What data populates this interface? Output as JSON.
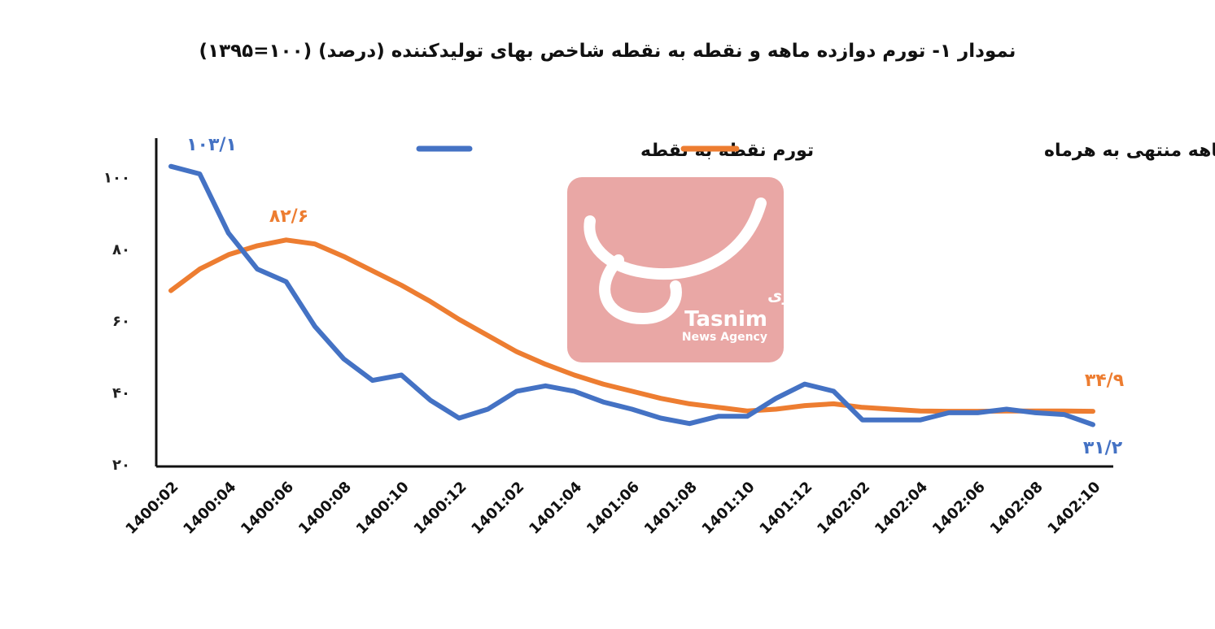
{
  "chart_data": {
    "type": "line",
    "title": "نمودار ۱- تورم دوازده ماهه و نقطه به نقطه شاخص بهای تولیدکننده (درصد) (۱۰۰=۱۳۹۵)",
    "xlabel": "",
    "ylabel": "",
    "ylim": [
      20,
      110
    ],
    "y_ticks": [
      20,
      40,
      60,
      80,
      100
    ],
    "y_tick_labels": [
      "۲۰",
      "۴۰",
      "۶۰",
      "۸۰",
      "۱۰۰"
    ],
    "x_tick_labels": [
      "1400:02",
      "1400:04",
      "1400:06",
      "1400:08",
      "1400:10",
      "1400:12",
      "1401:02",
      "1401:04",
      "1401:06",
      "1401:08",
      "1401:10",
      "1401:12",
      "1402:02",
      "1402:04",
      "1402:06",
      "1402:08",
      "1402:10"
    ],
    "x": [
      "1400:02",
      "1400:03",
      "1400:04",
      "1400:05",
      "1400:06",
      "1400:07",
      "1400:08",
      "1400:09",
      "1400:10",
      "1400:11",
      "1400:12",
      "1401:01",
      "1401:02",
      "1401:03",
      "1401:04",
      "1401:05",
      "1401:06",
      "1401:07",
      "1401:08",
      "1401:09",
      "1401:10",
      "1401:11",
      "1401:12",
      "1402:01",
      "1402:02",
      "1402:03",
      "1402:04",
      "1402:05",
      "1402:06",
      "1402:07",
      "1402:08",
      "1402:09",
      "1402:10"
    ],
    "series": [
      {
        "name": "تورم نقطه به نقطه",
        "color": "#4472c4",
        "values": [
          103.1,
          101,
          84.5,
          74.5,
          71,
          58.5,
          49.5,
          43.5,
          45,
          38,
          33,
          35.5,
          40.5,
          42,
          40.5,
          37.5,
          35.5,
          33,
          31.5,
          33.5,
          33.5,
          38.5,
          42.5,
          40.5,
          32.5,
          32.5,
          32.5,
          34.5,
          34.5,
          35.5,
          34.5,
          34,
          31.2
        ]
      },
      {
        "name": "تورم دوازده ماهه منتهی به هرماه",
        "color": "#ed7d31",
        "values": [
          68.5,
          74.5,
          78.5,
          81,
          82.6,
          81.5,
          78,
          74,
          70,
          65.5,
          60.5,
          56,
          51.5,
          48,
          45,
          42.5,
          40.5,
          38.5,
          37,
          36,
          35,
          35.5,
          36.5,
          37,
          36,
          35.5,
          35,
          34.9,
          34.9,
          35,
          35,
          35,
          34.9
        ]
      }
    ],
    "annotations": [
      {
        "text": "۱۰۳/۱",
        "series": 0,
        "color": "#4472c4"
      },
      {
        "text": "۸۲/۶",
        "series": 1,
        "color": "#ed7d31"
      },
      {
        "text": "۳۴/۹",
        "series": 1,
        "color": "#ed7d31"
      },
      {
        "text": "۳۱/۲",
        "series": 0,
        "color": "#4472c4"
      }
    ],
    "legend_position": "top",
    "grid": false
  },
  "watermark": {
    "arabic": "خبرگزاری",
    "brand": "Tasnim",
    "sub": "News Agency",
    "color": "#e9a7a5"
  }
}
